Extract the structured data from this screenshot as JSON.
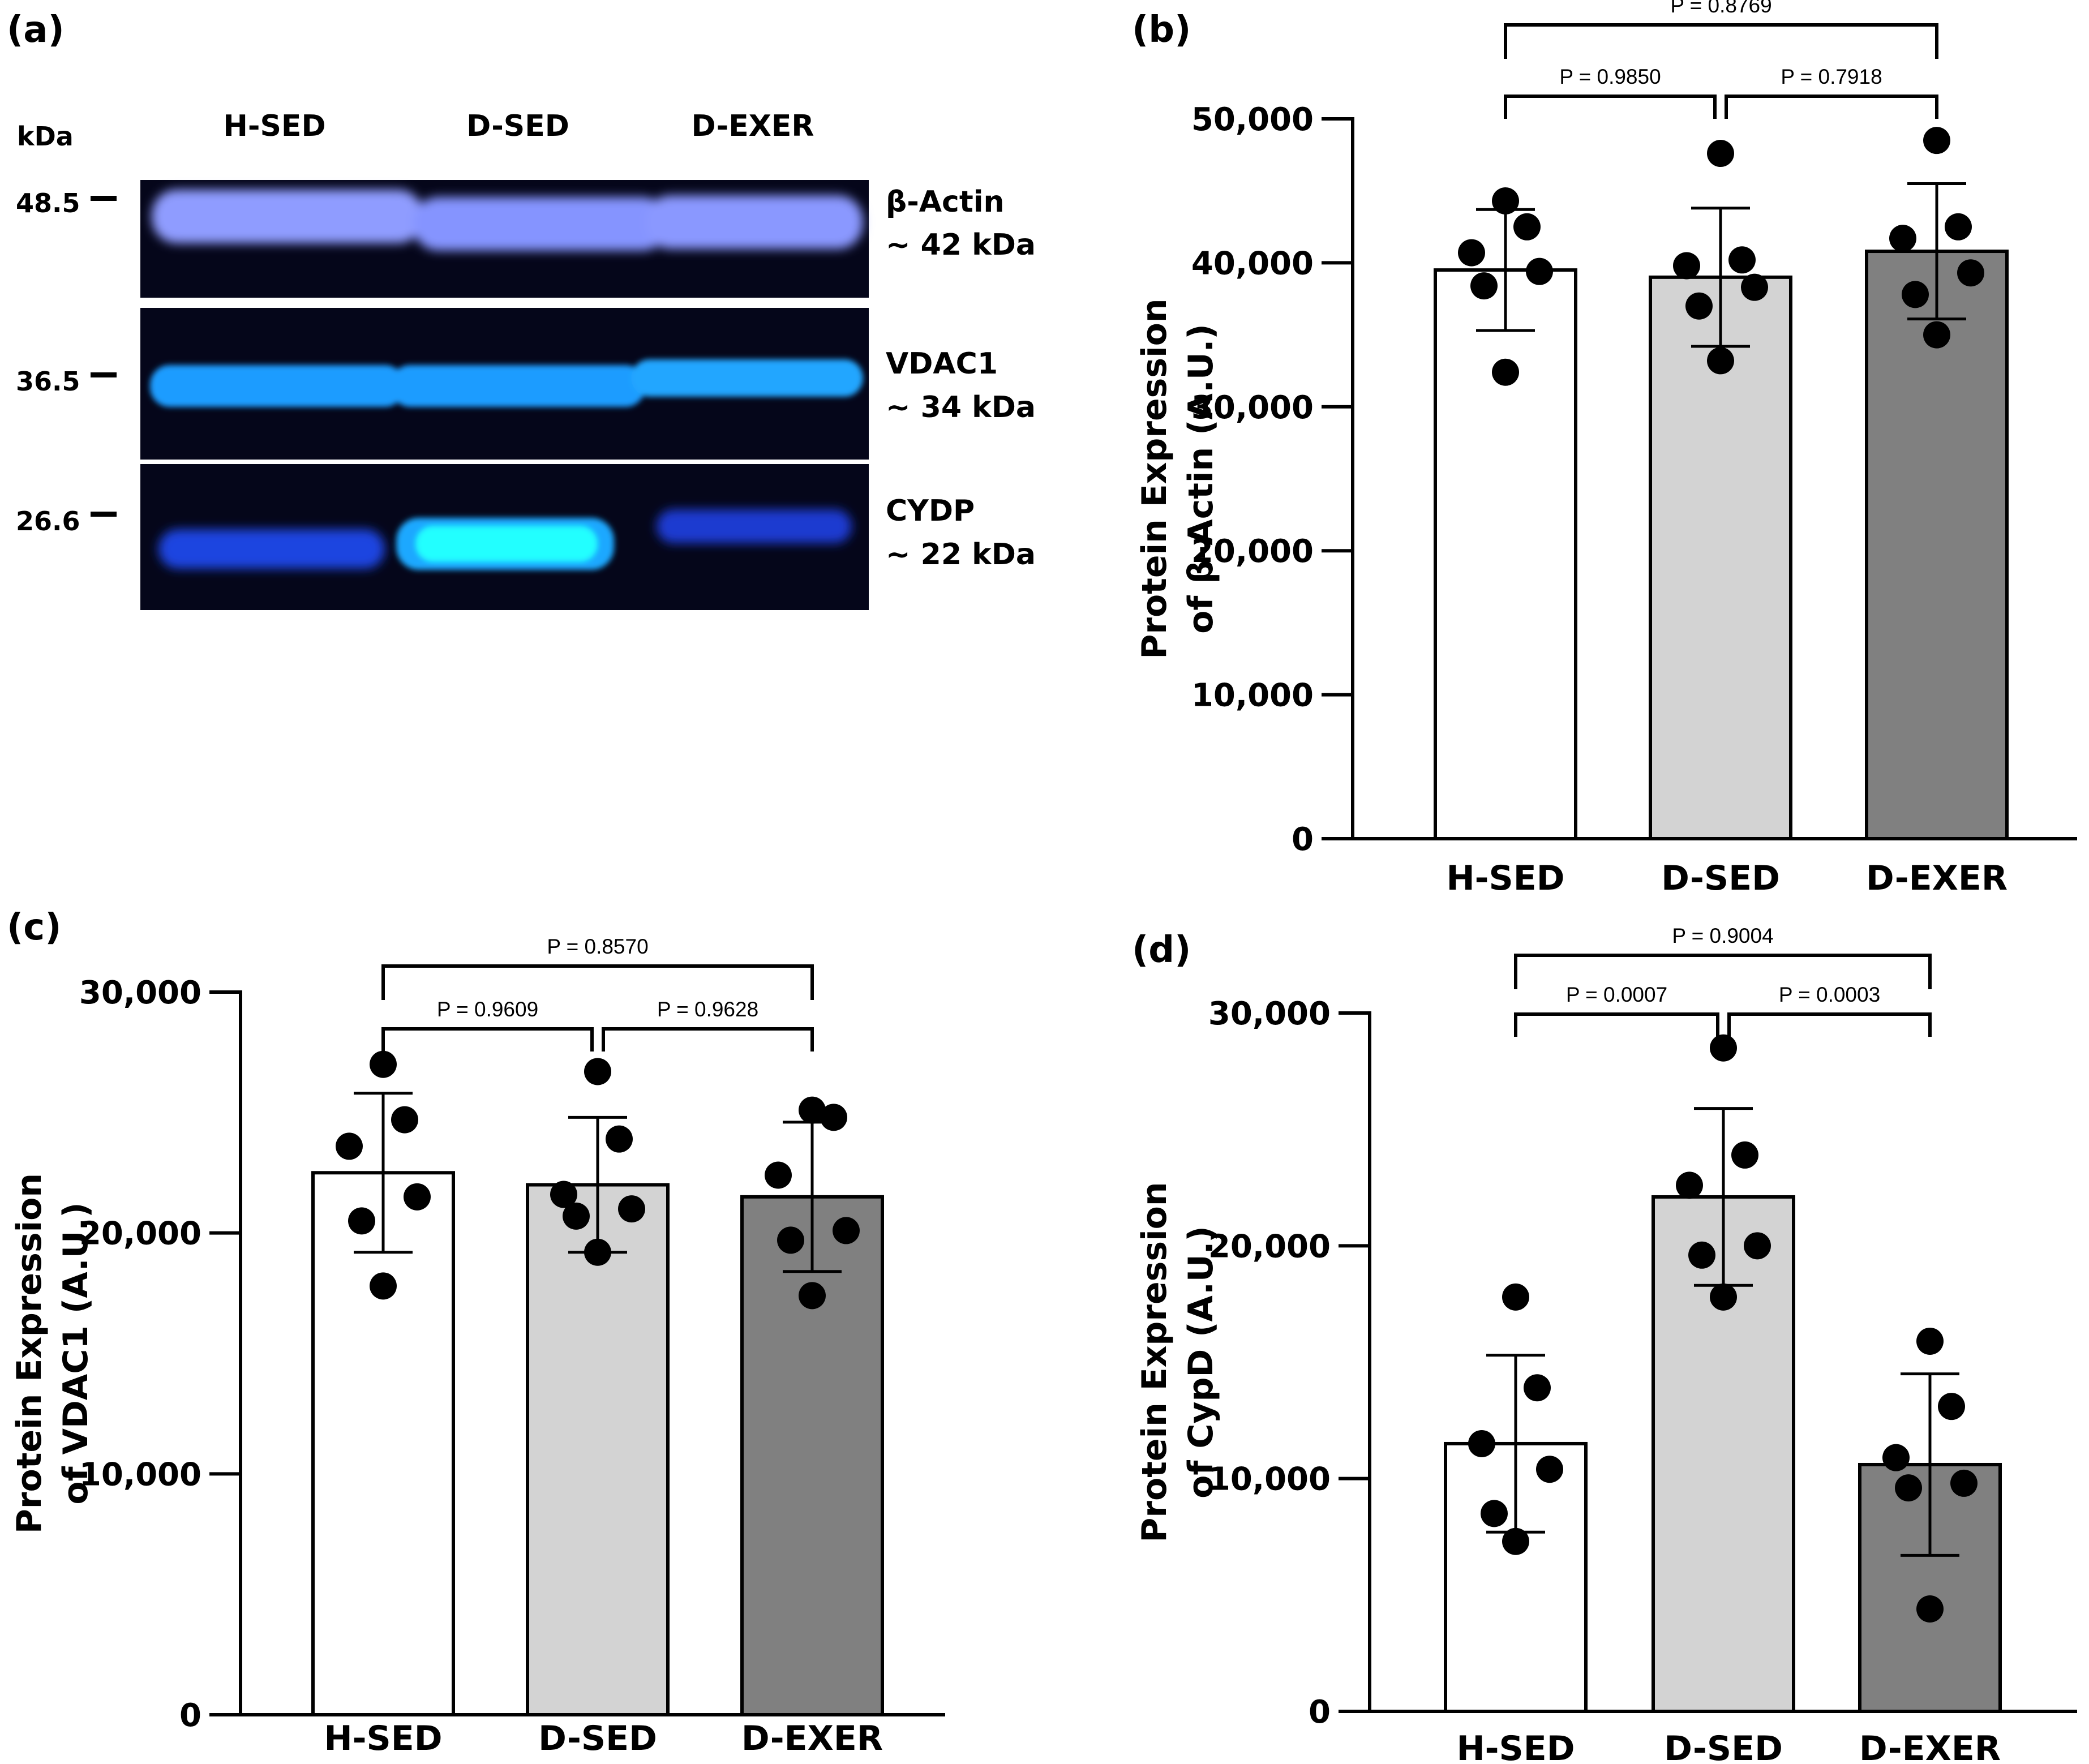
{
  "panel_a": {
    "label": "(a)",
    "kda_header": "kDa",
    "lanes": [
      "H-SED",
      "D-SED",
      "D-EXER"
    ],
    "markers": [
      "48.5",
      "36.5",
      "26.6"
    ],
    "bands": [
      {
        "name": "β-Actin",
        "size": "~ 42 kDa"
      },
      {
        "name": "VDAC1",
        "size": "~ 34 kDa"
      },
      {
        "name": "CYDP",
        "size": "~ 22 kDa"
      }
    ],
    "band_colors": {
      "background": "#05061a",
      "actin": "#8f9cff",
      "vdac": "#1a9cff",
      "cydp": "#22ffff",
      "dim": "#1f44e0"
    }
  },
  "chart_data": [
    {
      "id": "b",
      "label": "(b)",
      "type": "bar",
      "categories": [
        "H-SED",
        "D-SED",
        "D-EXER"
      ],
      "means": [
        39500,
        39000,
        40800
      ],
      "sd": [
        4200,
        4800,
        4700
      ],
      "points": [
        [
          44300,
          42500,
          40700,
          39400,
          38400,
          32400
        ],
        [
          47600,
          40200,
          39800,
          38300,
          37000,
          33200
        ],
        [
          48500,
          42500,
          41700,
          39300,
          37800,
          35000
        ]
      ],
      "bar_colors": [
        "#ffffff",
        "#d3d3d3",
        "#808080"
      ],
      "ylabel_line1": "Protein Expression",
      "ylabel_line2": "of β-Actin (A.U.)",
      "ylim": [
        0,
        50000
      ],
      "yticks": [
        0,
        10000,
        20000,
        30000,
        40000,
        50000
      ],
      "ytick_labels": [
        "0",
        "10,000",
        "20,000",
        "30,000",
        "40,000",
        "50,000"
      ],
      "comparisons": [
        {
          "pair": [
            0,
            1
          ],
          "text": "P = 0.9850"
        },
        {
          "pair": [
            1,
            2
          ],
          "text": "P = 0.7918"
        },
        {
          "pair": [
            0,
            2
          ],
          "text": "P = 0.8769"
        }
      ]
    },
    {
      "id": "c",
      "label": "(c)",
      "type": "bar",
      "categories": [
        "H-SED",
        "D-SED",
        "D-EXER"
      ],
      "means": [
        22500,
        22000,
        21500
      ],
      "sd": [
        3300,
        2800,
        3100
      ],
      "points": [
        [
          27000,
          24700,
          23600,
          21500,
          20500,
          17800
        ],
        [
          26700,
          23900,
          21600,
          21000,
          20700,
          19200
        ],
        [
          25100,
          24800,
          22400,
          20100,
          19700,
          17400
        ]
      ],
      "bar_colors": [
        "#ffffff",
        "#d3d3d3",
        "#808080"
      ],
      "ylabel_line1": "Protein Expression",
      "ylabel_line2": "of VDAC1 (A.U.)",
      "ylim": [
        0,
        30000
      ],
      "yticks": [
        0,
        10000,
        20000,
        30000
      ],
      "ytick_labels": [
        "0",
        "10,000",
        "20,000",
        "30,000"
      ],
      "comparisons": [
        {
          "pair": [
            0,
            1
          ],
          "text": "P = 0.9609"
        },
        {
          "pair": [
            1,
            2
          ],
          "text": "P = 0.9628"
        },
        {
          "pair": [
            0,
            2
          ],
          "text": "P = 0.8570"
        }
      ]
    },
    {
      "id": "d",
      "label": "(d)",
      "type": "bar",
      "categories": [
        "H-SED",
        "D-SED",
        "D-EXER"
      ],
      "means": [
        11500,
        22100,
        10600
      ],
      "sd": [
        3800,
        3800,
        3900
      ],
      "points": [
        [
          17800,
          13900,
          11500,
          10400,
          8500,
          7300
        ],
        [
          28500,
          23900,
          22600,
          20000,
          19600,
          17800
        ],
        [
          15900,
          13100,
          10900,
          9800,
          9600,
          4400
        ]
      ],
      "bar_colors": [
        "#ffffff",
        "#d3d3d3",
        "#808080"
      ],
      "ylabel_line1": "Protein Expression",
      "ylabel_line2": "of CypD (A.U.)",
      "ylim": [
        0,
        30000
      ],
      "yticks": [
        0,
        10000,
        20000,
        30000
      ],
      "ytick_labels": [
        "0",
        "10,000",
        "20,000",
        "30,000"
      ],
      "comparisons": [
        {
          "pair": [
            0,
            1
          ],
          "text": "P = 0.0007"
        },
        {
          "pair": [
            1,
            2
          ],
          "text": "P = 0.0003"
        },
        {
          "pair": [
            0,
            2
          ],
          "text": "P = 0.9004"
        }
      ]
    }
  ]
}
